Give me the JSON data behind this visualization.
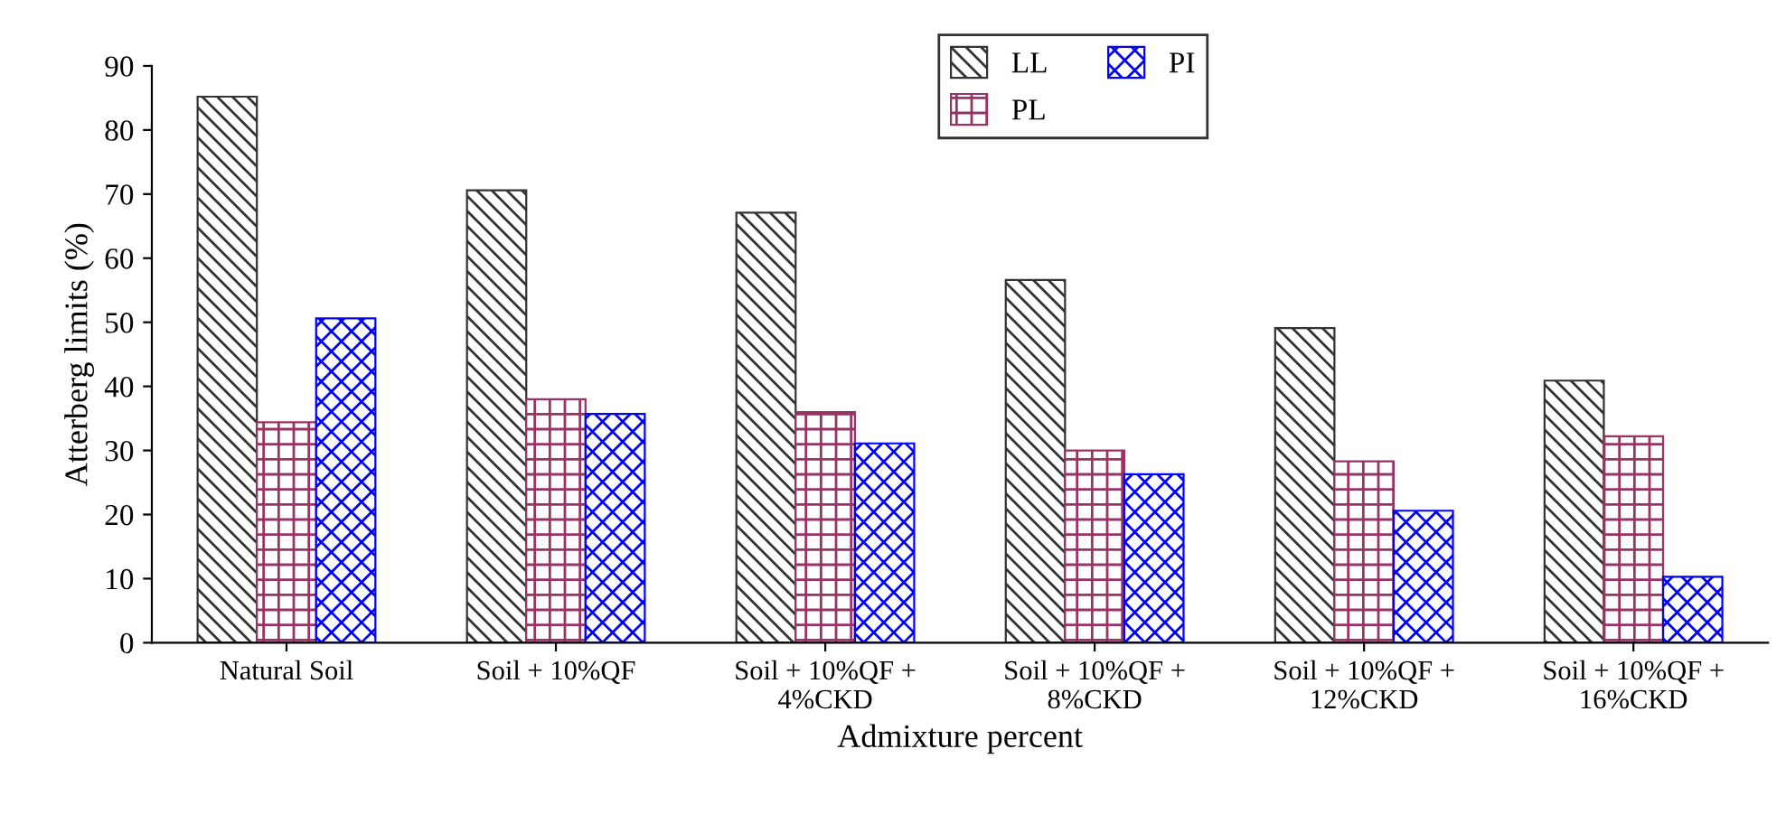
{
  "chart_data": {
    "type": "bar",
    "xlabel": "Admixture percent",
    "ylabel": "Atterberg limits (%)",
    "categories": [
      "Natural Soil",
      "Soil + 10%QF",
      "Soil + 10%QF +\n4%CKD",
      "Soil + 10%QF +\n8%CKD",
      "Soil + 10%QF +\n12%CKD",
      "Soil + 10%QF +\n16%CKD"
    ],
    "series": [
      {
        "name": "LL",
        "color": "#333333",
        "values": [
          85.2,
          70.6,
          67.1,
          56.6,
          49.1,
          40.9
        ]
      },
      {
        "name": "PL",
        "color": "#993366",
        "values": [
          34.4,
          38,
          36,
          30,
          28.3,
          32.2
        ]
      },
      {
        "name": "PI",
        "color": "#0000ff",
        "values": [
          50.6,
          35.7,
          31.1,
          26.3,
          20.6,
          10.3
        ]
      }
    ],
    "ylim": [
      0,
      90
    ],
    "yticks": [
      0,
      10,
      20,
      30,
      40,
      50,
      60,
      70,
      80,
      90
    ],
    "grid": false,
    "legend": "top"
  }
}
